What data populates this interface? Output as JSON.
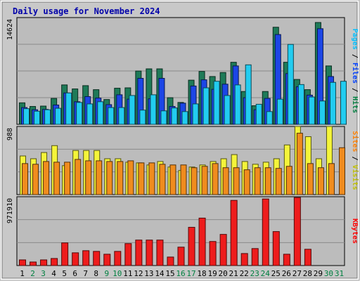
{
  "chart_data": {
    "type": "bar",
    "title": "Daily usage for November 2024",
    "categories": [
      "1",
      "2",
      "3",
      "4",
      "5",
      "6",
      "7",
      "8",
      "9",
      "10",
      "11",
      "12",
      "13",
      "14",
      "15",
      "16",
      "17",
      "18",
      "19",
      "20",
      "21",
      "22",
      "23",
      "24",
      "25",
      "26",
      "27",
      "28",
      "29",
      "30",
      "31"
    ],
    "weekend_days": [
      "2",
      "3",
      "9",
      "10",
      "16",
      "17",
      "23",
      "24",
      "30",
      "31"
    ],
    "panels": [
      {
        "id": "hits-files-pages",
        "ymax_label": "14624",
        "ymax": 14624,
        "axis_legend": [
          {
            "text": "Pages",
            "color": "#00c0ff"
          },
          {
            "text": " / ",
            "color": "#000000"
          },
          {
            "text": "Files",
            "color": "#0040ff"
          },
          {
            "text": " / ",
            "color": "#000000"
          },
          {
            "text": "Hits",
            "color": "#008040"
          }
        ],
        "series": [
          {
            "name": "Hits",
            "color": "#1e7a58",
            "values": [
              2950,
              2450,
              2500,
              3550,
              5400,
              4850,
              5300,
              4750,
              3400,
              4950,
              5000,
              7300,
              7600,
              7600,
              3650,
              3000,
              6050,
              7250,
              6550,
              7100,
              8500,
              4500,
              2550,
              4500,
              13300,
              8500,
              6150,
              4750,
              13950,
              8000,
              0
            ]
          },
          {
            "name": "Files",
            "color": "#1c46e6",
            "values": [
              2300,
              2000,
              2050,
              2650,
              4300,
              3100,
              3800,
              3600,
              2700,
              4050,
              3450,
              6300,
              3500,
              6300,
              2450,
              2900,
              5250,
              6100,
              4800,
              5500,
              8000,
              3650,
              2000,
              3550,
              12300,
              6950,
              5150,
              4000,
              13100,
              6550,
              0
            ]
          },
          {
            "name": "Pages",
            "color": "#22ccf0",
            "values": [
              2150,
              1800,
              2000,
              2200,
              4300,
              3000,
              2800,
              3100,
              2300,
              2300,
              3950,
              1950,
              4050,
              1850,
              2250,
              1750,
              2800,
              5000,
              5900,
              3950,
              5400,
              8150,
              2750,
              1750,
              3450,
              10950,
              5450,
              3750,
              3200,
              5750,
              5900
            ]
          }
        ]
      },
      {
        "id": "visits-sites",
        "ymax_label": "988",
        "ymax": 988,
        "axis_legend": [
          {
            "text": "Sites",
            "color": "#ff8000"
          },
          {
            "text": " / ",
            "color": "#000000"
          },
          {
            "text": "Visits",
            "color": "#c0c000"
          }
        ],
        "series": [
          {
            "name": "Visits",
            "color": "#f4f43a",
            "values": [
              560,
              520,
              610,
              710,
              420,
              640,
              640,
              640,
              520,
              520,
              470,
              460,
              430,
              480,
              400,
              350,
              400,
              430,
              480,
              520,
              580,
              480,
              440,
              470,
              520,
              720,
              990,
              840,
              520,
              990,
              0
            ]
          },
          {
            "name": "Sites",
            "color": "#f08c1e",
            "values": [
              450,
              440,
              480,
              470,
              470,
              510,
              490,
              490,
              480,
              480,
              490,
              460,
              460,
              440,
              430,
              430,
              390,
              410,
              450,
              390,
              390,
              360,
              390,
              390,
              380,
              410,
              890,
              450,
              390,
              450,
              680
            ]
          }
        ]
      },
      {
        "id": "kbytes",
        "ymax_label": "971910",
        "ymax": 971910,
        "axis_legend": [
          {
            "text": "KBytes",
            "color": "#ff0000"
          }
        ],
        "series": [
          {
            "name": "KBytes",
            "color": "#ee1c1c",
            "values": [
              80000,
              50000,
              80000,
              100000,
              320000,
              180000,
              210000,
              200000,
              160000,
              200000,
              310000,
              360000,
              360000,
              360000,
              120000,
              260000,
              540000,
              670000,
              340000,
              440000,
              920000,
              170000,
              240000,
              940000,
              480000,
              160000,
              960000,
              230000,
              0,
              0,
              0
            ]
          }
        ]
      }
    ]
  }
}
